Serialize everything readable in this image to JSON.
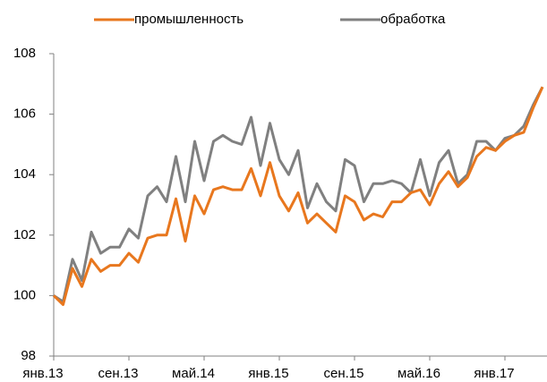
{
  "chart_data": {
    "type": "line",
    "categories": [
      "янв.13",
      null,
      null,
      null,
      null,
      null,
      null,
      null,
      "сен.13",
      null,
      null,
      null,
      null,
      null,
      null,
      null,
      "май.14",
      null,
      null,
      null,
      null,
      null,
      null,
      null,
      "янв.15",
      null,
      null,
      null,
      null,
      null,
      null,
      null,
      "сен.15",
      null,
      null,
      null,
      null,
      null,
      null,
      null,
      "май.16",
      null,
      null,
      null,
      null,
      null,
      null,
      null,
      "янв.17",
      null,
      null,
      null,
      null
    ],
    "series": [
      {
        "name": "промышленность",
        "color": "#e8771e",
        "values": [
          100.0,
          99.7,
          100.9,
          100.3,
          101.2,
          100.8,
          101.0,
          101.0,
          101.4,
          101.1,
          101.9,
          102.0,
          102.0,
          103.2,
          101.8,
          103.3,
          102.7,
          103.5,
          103.6,
          103.5,
          103.5,
          104.2,
          103.3,
          104.4,
          103.3,
          102.8,
          103.4,
          102.4,
          102.7,
          102.4,
          102.1,
          103.3,
          103.1,
          102.5,
          102.7,
          102.6,
          103.1,
          103.1,
          103.4,
          103.5,
          103.0,
          103.7,
          104.1,
          103.6,
          103.9,
          104.6,
          104.9,
          104.8,
          105.1,
          105.3,
          105.4,
          106.2,
          106.9
        ]
      },
      {
        "name": "обработка",
        "color": "#808080",
        "values": [
          100.0,
          99.8,
          101.2,
          100.5,
          102.1,
          101.4,
          101.6,
          101.6,
          102.2,
          101.9,
          103.3,
          103.6,
          103.1,
          104.6,
          103.1,
          105.1,
          103.8,
          105.1,
          105.3,
          105.1,
          105.0,
          105.9,
          104.3,
          105.7,
          104.5,
          104.0,
          104.8,
          102.9,
          103.7,
          103.1,
          102.8,
          104.5,
          104.3,
          103.1,
          103.7,
          103.7,
          103.8,
          103.7,
          103.4,
          104.5,
          103.3,
          104.4,
          104.8,
          103.7,
          104.0,
          105.1,
          105.1,
          104.8,
          105.2,
          105.3,
          105.6,
          106.3,
          106.9
        ]
      }
    ],
    "ylim": [
      98,
      108
    ],
    "yticks": [
      98,
      100,
      102,
      104,
      106,
      108
    ],
    "grid": false,
    "legend": "top"
  }
}
